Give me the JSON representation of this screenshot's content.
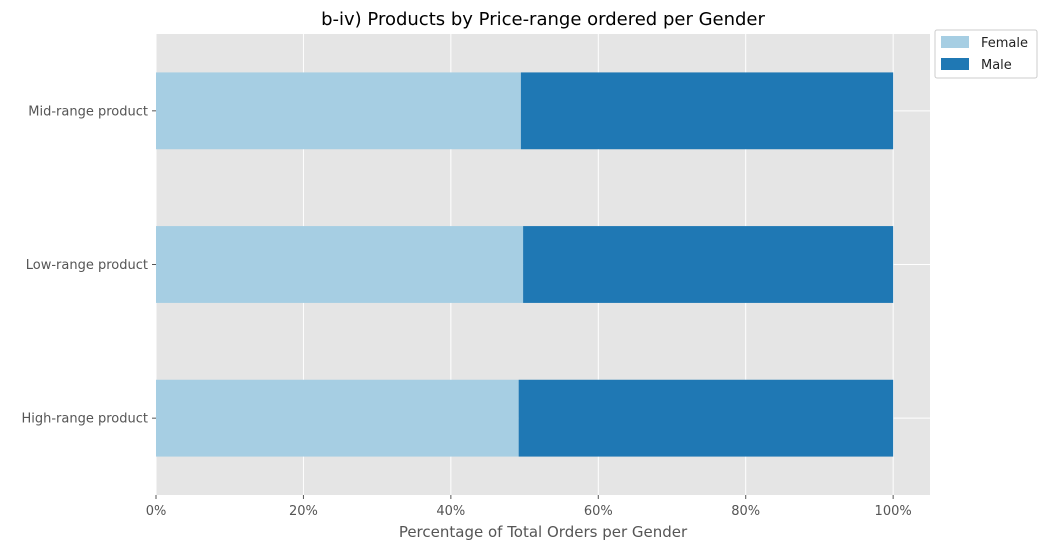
{
  "chart_data": {
    "type": "bar",
    "orientation": "horizontal",
    "stacked": true,
    "title": "b-iv) Products by Price-range ordered per Gender",
    "xlabel": "Percentage of Total Orders per Gender",
    "ylabel": "",
    "xlim": [
      0,
      105
    ],
    "x_ticks": [
      0,
      20,
      40,
      60,
      80,
      100
    ],
    "x_tick_labels": [
      "0%",
      "20%",
      "40%",
      "60%",
      "80%",
      "100%"
    ],
    "categories": [
      "High-range product",
      "Low-range product",
      "Mid-range product"
    ],
    "series": [
      {
        "name": "Female",
        "color": "#a6cee3",
        "values": [
          49.2,
          49.8,
          49.5
        ]
      },
      {
        "name": "Male",
        "color": "#1f78b4",
        "values": [
          50.8,
          50.2,
          50.5
        ]
      }
    ],
    "grid": true,
    "legend": {
      "placement": "outside-top-right"
    },
    "colors": {
      "plot_background": "#e5e5e5",
      "grid": "#ffffff"
    }
  }
}
